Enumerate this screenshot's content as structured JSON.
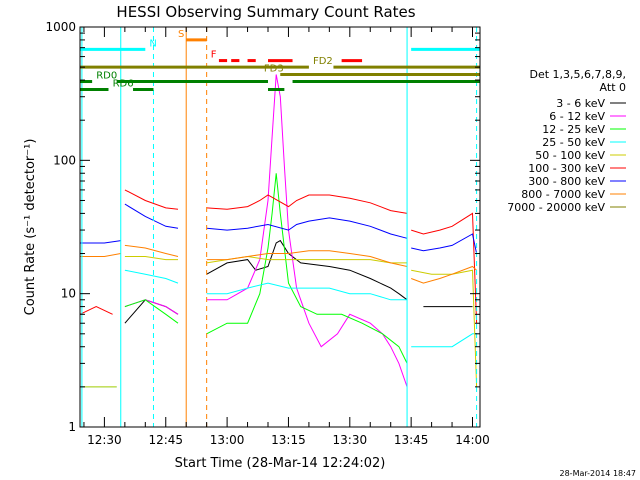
{
  "chart_data": {
    "type": "line",
    "title": "HESSI Observing Summary Count Rates",
    "xlabel": "Start Time (28-Mar-14 12:24:02)",
    "ylabel": "Count Rate (s⁻¹ detector⁻¹)",
    "yscale": "log",
    "ylim": [
      1,
      1000
    ],
    "xlim": [
      "12:24:02",
      "14:01:50"
    ],
    "x_ticks": [
      "12:30",
      "12:45",
      "13:00",
      "13:15",
      "13:30",
      "13:45",
      "14:00"
    ],
    "y_ticks": [
      "1",
      "10",
      "100",
      "1000"
    ],
    "grid": false,
    "legend_position": "right",
    "legend_title_line1": "Det 1,3,5,6,7,8,9,",
    "legend_title_line2": "Att 0",
    "timestamp": "28-Mar-2014 18:47",
    "data_gaps": [
      [
        "12:34",
        "12:35"
      ],
      [
        "12:50",
        "12:55"
      ],
      [
        "13:44",
        "13:45"
      ]
    ],
    "series": [
      {
        "name": "3 - 6 keV",
        "color": "#000000",
        "points": [
          [
            "12:35",
            6
          ],
          [
            "12:40",
            9
          ],
          [
            "12:45",
            8
          ],
          [
            "12:48",
            7
          ],
          [
            "12:55",
            14
          ],
          [
            "13:00",
            17
          ],
          [
            "13:05",
            18
          ],
          [
            "13:07",
            15
          ],
          [
            "13:10",
            16
          ],
          [
            "13:12",
            24
          ],
          [
            "13:13",
            25
          ],
          [
            "13:15",
            20
          ],
          [
            "13:18",
            17
          ],
          [
            "13:25",
            16
          ],
          [
            "13:30",
            15
          ],
          [
            "13:35",
            13
          ],
          [
            "13:40",
            11
          ],
          [
            "13:42",
            10
          ],
          [
            "13:44",
            9
          ],
          [
            "13:48",
            8
          ],
          [
            "13:52",
            8
          ],
          [
            "14:00",
            8
          ]
        ]
      },
      {
        "name": "6 - 12 keV",
        "color": "#ff00ff",
        "points": [
          [
            "12:35",
            8
          ],
          [
            "12:40",
            9
          ],
          [
            "12:45",
            8
          ],
          [
            "12:48",
            7
          ],
          [
            "12:55",
            9
          ],
          [
            "13:00",
            9
          ],
          [
            "13:05",
            11
          ],
          [
            "13:08",
            18
          ],
          [
            "13:10",
            50
          ],
          [
            "13:11",
            150
          ],
          [
            "13:12",
            440
          ],
          [
            "13:13",
            300
          ],
          [
            "13:14",
            90
          ],
          [
            "13:15",
            30
          ],
          [
            "13:17",
            11
          ],
          [
            "13:20",
            6
          ],
          [
            "13:23",
            4
          ],
          [
            "13:27",
            5
          ],
          [
            "13:30",
            7
          ],
          [
            "13:35",
            6
          ],
          [
            "13:38",
            5
          ],
          [
            "13:40",
            4
          ],
          [
            "13:42",
            3
          ],
          [
            "13:44",
            2
          ]
        ]
      },
      {
        "name": "12 - 25 keV",
        "color": "#00ff00",
        "points": [
          [
            "12:35",
            8
          ],
          [
            "12:40",
            9
          ],
          [
            "12:45",
            7
          ],
          [
            "12:48",
            6
          ],
          [
            "12:55",
            5
          ],
          [
            "13:00",
            6
          ],
          [
            "13:05",
            6
          ],
          [
            "13:08",
            10
          ],
          [
            "13:10",
            22
          ],
          [
            "13:11",
            40
          ],
          [
            "13:12",
            80
          ],
          [
            "13:13",
            40
          ],
          [
            "13:15",
            12
          ],
          [
            "13:18",
            8
          ],
          [
            "13:22",
            7
          ],
          [
            "13:28",
            7
          ],
          [
            "13:33",
            6
          ],
          [
            "13:38",
            5
          ],
          [
            "13:42",
            4
          ],
          [
            "13:44",
            3
          ]
        ]
      },
      {
        "name": "25 - 50 keV",
        "color": "#00ffff",
        "points": [
          [
            "12:24:02",
            2
          ],
          [
            "12:29",
            2
          ],
          [
            "12:33",
            2
          ],
          [
            "12:35",
            15
          ],
          [
            "12:40",
            14
          ],
          [
            "12:45",
            13
          ],
          [
            "12:48",
            12
          ],
          [
            "12:55",
            10
          ],
          [
            "13:00",
            10
          ],
          [
            "13:05",
            11
          ],
          [
            "13:10",
            12
          ],
          [
            "13:15",
            11
          ],
          [
            "13:20",
            11
          ],
          [
            "13:25",
            11
          ],
          [
            "13:30",
            10
          ],
          [
            "13:35",
            10
          ],
          [
            "13:40",
            9
          ],
          [
            "13:44",
            9
          ],
          [
            "13:45",
            4
          ],
          [
            "13:50",
            4
          ],
          [
            "13:55",
            4
          ],
          [
            "14:00",
            5
          ],
          [
            "14:01",
            5
          ]
        ]
      },
      {
        "name": "50 - 100 keV",
        "color": "#cccc00",
        "points": [
          [
            "12:24:02",
            2
          ],
          [
            "12:33",
            2
          ],
          [
            "12:35",
            19
          ],
          [
            "12:40",
            19
          ],
          [
            "12:45",
            18
          ],
          [
            "12:48",
            18
          ],
          [
            "12:55",
            17
          ],
          [
            "13:00",
            18
          ],
          [
            "13:05",
            19
          ],
          [
            "13:10",
            18
          ],
          [
            "13:15",
            18
          ],
          [
            "13:20",
            18
          ],
          [
            "13:25",
            18
          ],
          [
            "13:30",
            18
          ],
          [
            "13:35",
            18
          ],
          [
            "13:40",
            17
          ],
          [
            "13:44",
            17
          ],
          [
            "13:45",
            15
          ],
          [
            "13:50",
            14
          ],
          [
            "13:55",
            14
          ],
          [
            "14:00",
            15
          ],
          [
            "14:01",
            2
          ]
        ]
      },
      {
        "name": "100 - 300 keV",
        "color": "#ff0000",
        "points": [
          [
            "12:24:02",
            7
          ],
          [
            "12:28",
            8
          ],
          [
            "12:32",
            7
          ],
          [
            "12:35",
            60
          ],
          [
            "12:40",
            50
          ],
          [
            "12:45",
            44
          ],
          [
            "12:48",
            43
          ],
          [
            "12:55",
            44
          ],
          [
            "13:00",
            43
          ],
          [
            "13:05",
            45
          ],
          [
            "13:08",
            50
          ],
          [
            "13:10",
            55
          ],
          [
            "13:15",
            45
          ],
          [
            "13:17",
            50
          ],
          [
            "13:20",
            55
          ],
          [
            "13:25",
            55
          ],
          [
            "13:30",
            52
          ],
          [
            "13:35",
            48
          ],
          [
            "13:40",
            42
          ],
          [
            "13:44",
            40
          ],
          [
            "13:45",
            30
          ],
          [
            "13:48",
            28
          ],
          [
            "13:52",
            30
          ],
          [
            "13:55",
            32
          ],
          [
            "14:00",
            40
          ],
          [
            "14:01",
            6
          ]
        ]
      },
      {
        "name": "300 - 800 keV",
        "color": "#0000ff",
        "points": [
          [
            "12:24:02",
            24
          ],
          [
            "12:30",
            24
          ],
          [
            "12:34",
            25
          ],
          [
            "12:35",
            47
          ],
          [
            "12:40",
            38
          ],
          [
            "12:45",
            32
          ],
          [
            "12:48",
            31
          ],
          [
            "12:55",
            31
          ],
          [
            "13:00",
            30
          ],
          [
            "13:05",
            31
          ],
          [
            "13:10",
            33
          ],
          [
            "13:15",
            30
          ],
          [
            "13:17",
            33
          ],
          [
            "13:20",
            35
          ],
          [
            "13:25",
            37
          ],
          [
            "13:30",
            35
          ],
          [
            "13:35",
            32
          ],
          [
            "13:40",
            28
          ],
          [
            "13:44",
            26
          ],
          [
            "13:45",
            22
          ],
          [
            "13:48",
            21
          ],
          [
            "13:52",
            22
          ],
          [
            "13:55",
            23
          ],
          [
            "14:00",
            28
          ],
          [
            "14:01",
            20
          ]
        ]
      },
      {
        "name": "800 - 7000 keV",
        "color": "#ff8000",
        "points": [
          [
            "12:24:02",
            19
          ],
          [
            "12:30",
            19
          ],
          [
            "12:34",
            20
          ],
          [
            "12:35",
            23
          ],
          [
            "12:40",
            22
          ],
          [
            "12:45",
            20
          ],
          [
            "12:48",
            19
          ],
          [
            "12:55",
            18
          ],
          [
            "13:00",
            18
          ],
          [
            "13:05",
            19
          ],
          [
            "13:10",
            20
          ],
          [
            "13:15",
            20
          ],
          [
            "13:20",
            21
          ],
          [
            "13:25",
            21
          ],
          [
            "13:30",
            20
          ],
          [
            "13:35",
            19
          ],
          [
            "13:40",
            17
          ],
          [
            "13:44",
            16
          ],
          [
            "13:45",
            13
          ],
          [
            "13:48",
            12
          ],
          [
            "13:52",
            13
          ],
          [
            "13:55",
            14
          ],
          [
            "14:00",
            16
          ],
          [
            "14:01",
            15
          ]
        ]
      },
      {
        "name": "7000 - 20000 keV",
        "color": "#808000",
        "points": []
      }
    ],
    "vertical_markers": [
      {
        "x": "12:24:30",
        "color": "#00ffff",
        "style": "solid"
      },
      {
        "x": "12:34",
        "color": "#00ffff",
        "style": "solid"
      },
      {
        "x": "12:42",
        "color": "#00ffff",
        "style": "dashed"
      },
      {
        "x": "12:50",
        "color": "#ff8000",
        "style": "solid"
      },
      {
        "x": "12:55",
        "color": "#ff8000",
        "style": "dashed"
      },
      {
        "x": "13:44",
        "color": "#00ffff",
        "style": "solid"
      },
      {
        "x": "14:01",
        "color": "#00ffff",
        "style": "dashed"
      }
    ],
    "flag_bars": [
      {
        "label": "N",
        "color": "#00ffff",
        "y": 680,
        "segments": [
          [
            "12:24:02",
            "12:40"
          ],
          [
            "13:45",
            "14:01:50"
          ]
        ],
        "dashed": false,
        "label_at": "12:41"
      },
      {
        "label": "S",
        "color": "#ff8000",
        "y": 800,
        "segments": [
          [
            "12:50",
            "12:55"
          ]
        ],
        "dashed": false,
        "label_at": "12:48"
      },
      {
        "label": "F",
        "color": "#ff0000",
        "y": 560,
        "segments": [
          [
            "12:58",
            "13:00"
          ],
          [
            "13:01",
            "13:03"
          ],
          [
            "13:05",
            "13:07"
          ],
          [
            "13:10",
            "13:16"
          ],
          [
            "13:28",
            "13:33"
          ]
        ],
        "dashed": false,
        "label_at": "12:56"
      },
      {
        "label": "FD2",
        "color": "#808000",
        "y": 500,
        "segments": [
          [
            "12:24:02",
            "13:20"
          ],
          [
            "13:26",
            "14:01:50"
          ]
        ],
        "dashed": false,
        "label_at": "13:21"
      },
      {
        "label": "FD3",
        "color": "#808000",
        "y": 440,
        "segments": [
          [
            "13:13",
            "14:01:50"
          ]
        ],
        "dashed": false,
        "label_at": "13:09"
      },
      {
        "label": "RD0",
        "color": "#008000",
        "y": 390,
        "segments": [
          [
            "12:24:02",
            "12:27"
          ],
          [
            "12:33",
            "13:10"
          ],
          [
            "13:16",
            "14:01:50"
          ]
        ],
        "dashed": false,
        "label_at": "12:28"
      },
      {
        "label": "RD6",
        "color": "#008000",
        "y": 340,
        "segments": [
          [
            "12:24:02",
            "12:31"
          ],
          [
            "12:37",
            "12:42"
          ],
          [
            "13:10",
            "13:14"
          ]
        ],
        "dashed": false,
        "label_at": "12:32"
      }
    ]
  }
}
